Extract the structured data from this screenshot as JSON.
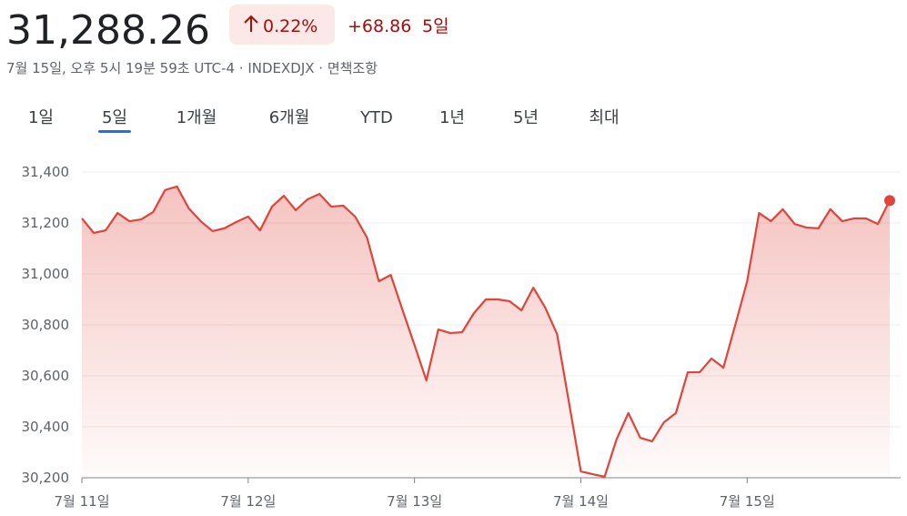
{
  "header": {
    "price": "31,288.26",
    "change_pct": "0.22%",
    "change_abs": "+68.86",
    "period": "5일",
    "meta": "7월 15일, 오후 5시 19분 59초 UTC-4 · INDEXDJX · 면책조항"
  },
  "tabs": [
    "1일",
    "5일",
    "1개월",
    "6개월",
    "YTD",
    "1년",
    "5년",
    "최대"
  ],
  "active_tab": 1,
  "chart_data": {
    "type": "line",
    "color": "#e0443a",
    "categories": [
      "7월 11일",
      null,
      null,
      null,
      null,
      null,
      null,
      null,
      null,
      null,
      null,
      null,
      null,
      null,
      "7월 12일",
      null,
      null,
      null,
      null,
      null,
      null,
      null,
      null,
      null,
      null,
      null,
      null,
      null,
      "7월 13일",
      null,
      null,
      null,
      null,
      null,
      null,
      null,
      null,
      null,
      null,
      null,
      null,
      null,
      "7월 14일",
      null,
      null,
      null,
      null,
      null,
      null,
      null,
      null,
      null,
      null,
      null,
      null,
      null,
      "7월 15일",
      null,
      null,
      null,
      null,
      null,
      null,
      null,
      null,
      null,
      null,
      null,
      null
    ],
    "values": [
      31218,
      31161,
      31171,
      31239,
      31207,
      31214,
      31243,
      31329,
      31343,
      31257,
      31207,
      31168,
      31179,
      31204,
      31225,
      31171,
      31264,
      31307,
      31250,
      31293,
      31314,
      31264,
      31268,
      31225,
      31143,
      30971,
      30996,
      30857,
      30721,
      30582,
      30782,
      30768,
      30771,
      30846,
      30900,
      30900,
      30893,
      30857,
      30946,
      30868,
      30764,
      30496,
      30225,
      30214,
      30204,
      30350,
      30454,
      30357,
      30343,
      30418,
      30454,
      30614,
      30614,
      30668,
      30632,
      30800,
      30971,
      31239,
      31207,
      31254,
      31196,
      31182,
      31179,
      31254,
      31207,
      31218,
      31218,
      31196,
      31288
    ],
    "ylim": [
      30200,
      31400
    ],
    "yticks": [
      {
        "value": 30200,
        "label": "30,200"
      },
      {
        "value": 30400,
        "label": "30,400"
      },
      {
        "value": 30600,
        "label": "30,600"
      },
      {
        "value": 30800,
        "label": "30,800"
      },
      {
        "value": 31000,
        "label": "31,000"
      },
      {
        "value": 31200,
        "label": "31,200"
      },
      {
        "value": 31400,
        "label": "31,400"
      }
    ],
    "grid": true
  }
}
